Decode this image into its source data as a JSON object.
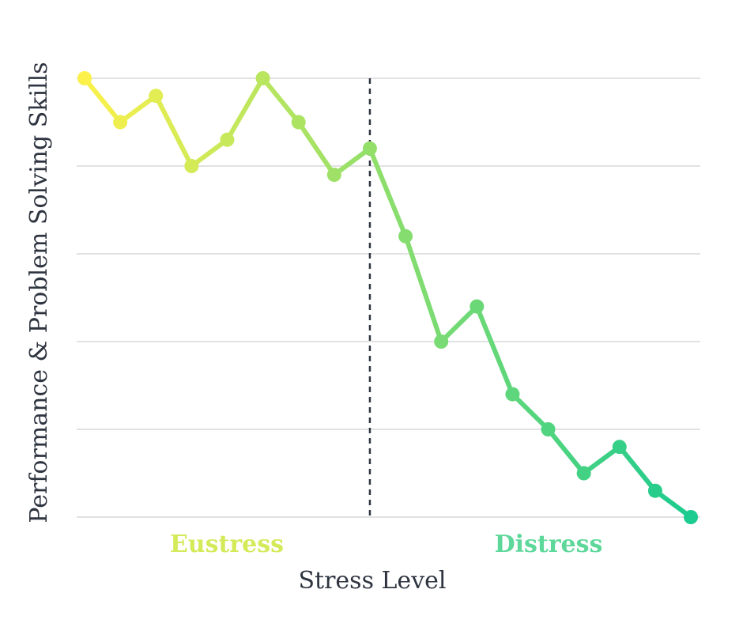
{
  "chart_data": {
    "type": "line",
    "title": "",
    "xlabel": "Stress Level",
    "ylabel": "Performance & Problem Solving Skills",
    "x": [
      1,
      2,
      3,
      4,
      5,
      6,
      7,
      8,
      9,
      10,
      11,
      12,
      13,
      14,
      15,
      16,
      17,
      18
    ],
    "series": [
      {
        "values": [
          10,
          9,
          9.6,
          8,
          8.6,
          10,
          9,
          7.8,
          8.4,
          6.4,
          4,
          4.8,
          2.8,
          2,
          1,
          1.6,
          0.6,
          0
        ]
      }
    ],
    "ylim": [
      0,
      10
    ],
    "yticks": [
      0,
      2,
      4,
      6,
      8,
      10
    ],
    "divider_x": 9,
    "grid": true,
    "regions": [
      {
        "label": "Eustress",
        "color": "#d4ea58"
      },
      {
        "label": "Distress",
        "color": "#5ed89a"
      }
    ],
    "colors": {
      "gradient_start": "#fbf14a",
      "gradient_end": "#1ccb8f",
      "grid": "#d9d9d9",
      "divider": "#2e3440",
      "text": "#2e3440"
    }
  }
}
